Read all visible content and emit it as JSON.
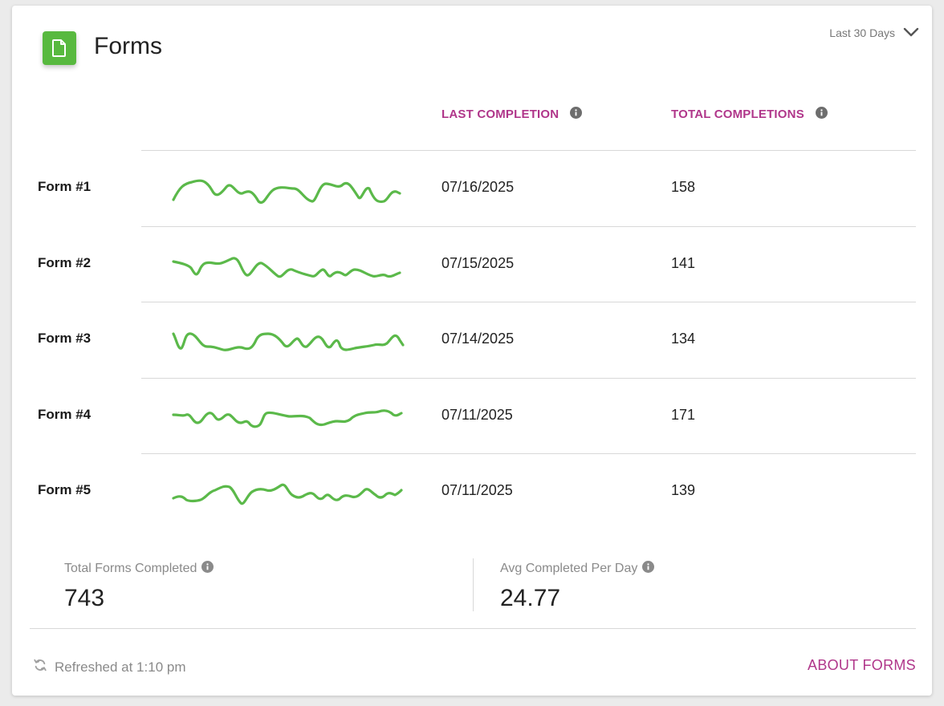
{
  "header": {
    "title": "Forms",
    "icon": "document-icon",
    "range_label": "Last 30 Days",
    "accent": "#58b93f"
  },
  "columns": {
    "last_completion": "LAST COMPLETION",
    "total_completions": "TOTAL COMPLETIONS",
    "header_color": "#b0368a"
  },
  "rows": [
    {
      "name": "Form #1",
      "last_completion": "07/16/2025",
      "total": "158"
    },
    {
      "name": "Form #2",
      "last_completion": "07/15/2025",
      "total": "141"
    },
    {
      "name": "Form #3",
      "last_completion": "07/14/2025",
      "total": "134"
    },
    {
      "name": "Form #4",
      "last_completion": "07/11/2025",
      "total": "171"
    },
    {
      "name": "Form #5",
      "last_completion": "07/11/2025",
      "total": "139"
    }
  ],
  "summary": {
    "total_label": "Total Forms Completed",
    "total_value": "743",
    "avg_label": "Avg Completed Per Day",
    "avg_value": "24.77"
  },
  "footer": {
    "refreshed": "Refreshed at 1:10 pm",
    "about_link": "ABOUT FORMS"
  }
}
